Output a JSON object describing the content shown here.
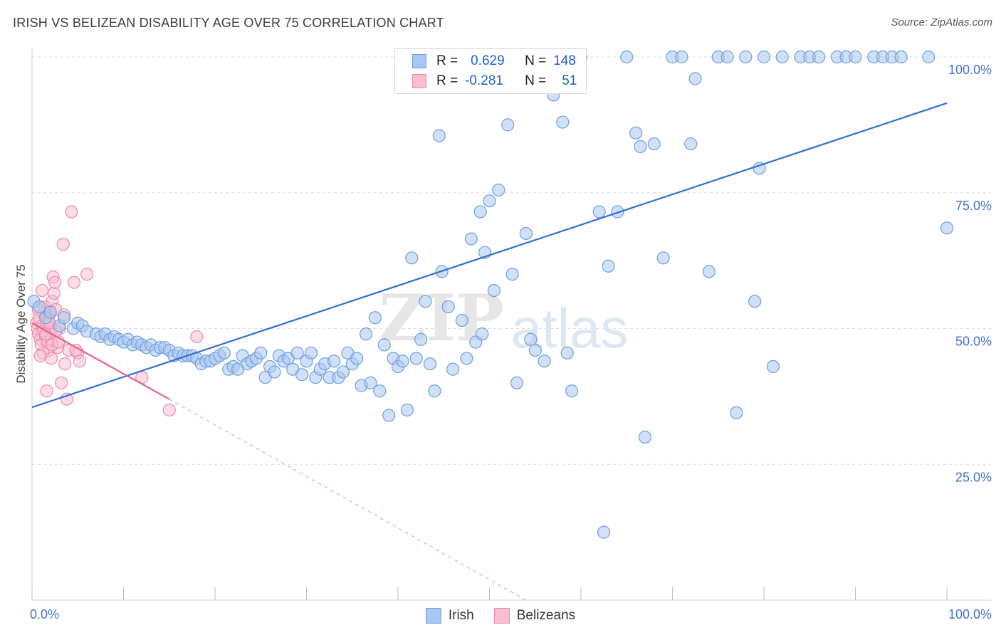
{
  "title": "IRISH VS BELIZEAN DISABILITY AGE OVER 75 CORRELATION CHART",
  "source": "Source: ZipAtlas.com",
  "watermark": {
    "zip": "ZIP",
    "atlas": "atlas"
  },
  "legend": {
    "irish": {
      "r_label": "R =",
      "r_value": "0.629",
      "n_label": "N =",
      "n_value": "148"
    },
    "belizeans": {
      "r_label": "R =",
      "r_value": "-0.281",
      "n_label": "N =",
      "n_value": "51"
    }
  },
  "colors": {
    "irish_fill": "#a9c6f0",
    "irish_stroke": "#6f9fe0",
    "irish_line": "#2f6fd1",
    "belize_fill": "#f7bfd0",
    "belize_stroke": "#ee8aab",
    "belize_line": "#e8608c",
    "grid": "#dcdcdc",
    "tick": "#4472c4"
  },
  "chart_data": {
    "type": "scatter",
    "title": "IRISH VS BELIZEAN DISABILITY AGE OVER 75 CORRELATION CHART",
    "xlabel": "",
    "ylabel": "Disability Age Over 75",
    "xlim": [
      0,
      100
    ],
    "ylim": [
      0,
      100
    ],
    "x_tick_labels": [
      "0.0%",
      "100.0%"
    ],
    "y_ticks": [
      25,
      50,
      75,
      100
    ],
    "y_tick_labels": [
      "25.0%",
      "50.0%",
      "75.0%",
      "100.0%"
    ],
    "grid": true,
    "legend_position": "bottom-center",
    "series": [
      {
        "name": "Irish",
        "r": 0.629,
        "n": 148,
        "trend": {
          "x0": 0,
          "y0": 35.5,
          "x1": 100,
          "y1": 91.5
        },
        "points": [
          [
            0.2,
            55
          ],
          [
            0.8,
            54
          ],
          [
            1.5,
            52
          ],
          [
            2,
            53
          ],
          [
            3,
            50.5
          ],
          [
            3.5,
            52
          ],
          [
            4.5,
            50
          ],
          [
            5,
            51
          ],
          [
            5.5,
            50.5
          ],
          [
            6,
            49.5
          ],
          [
            7,
            49
          ],
          [
            7.5,
            48.5
          ],
          [
            8,
            49
          ],
          [
            8.5,
            48
          ],
          [
            9,
            48.5
          ],
          [
            9.5,
            48
          ],
          [
            10,
            47.5
          ],
          [
            10.5,
            48
          ],
          [
            11,
            47
          ],
          [
            11.5,
            47.5
          ],
          [
            12,
            47
          ],
          [
            12.5,
            46.5
          ],
          [
            13,
            47
          ],
          [
            13.5,
            46
          ],
          [
            14,
            46.5
          ],
          [
            14.5,
            46.5
          ],
          [
            15,
            46
          ],
          [
            15.5,
            45
          ],
          [
            16,
            45.5
          ],
          [
            16.5,
            45
          ],
          [
            17,
            45
          ],
          [
            17.5,
            45
          ],
          [
            18,
            44.5
          ],
          [
            18.5,
            43.5
          ],
          [
            19,
            44
          ],
          [
            19.5,
            44
          ],
          [
            20,
            44.5
          ],
          [
            20.5,
            45
          ],
          [
            21,
            45.5
          ],
          [
            21.5,
            42.5
          ],
          [
            22,
            43
          ],
          [
            22.5,
            42.5
          ],
          [
            23,
            45
          ],
          [
            23.5,
            43.5
          ],
          [
            24,
            44
          ],
          [
            24.5,
            44.5
          ],
          [
            25,
            45.5
          ],
          [
            25.5,
            41
          ],
          [
            26,
            43
          ],
          [
            26.5,
            42
          ],
          [
            27,
            45
          ],
          [
            27.5,
            44
          ],
          [
            28,
            44.5
          ],
          [
            28.5,
            42.5
          ],
          [
            29,
            45.5
          ],
          [
            29.5,
            41.5
          ],
          [
            30,
            44
          ],
          [
            30.5,
            45.5
          ],
          [
            31,
            41
          ],
          [
            31.5,
            42.5
          ],
          [
            32,
            43.5
          ],
          [
            32.5,
            41
          ],
          [
            33,
            44
          ],
          [
            33.5,
            41
          ],
          [
            34,
            42
          ],
          [
            34.5,
            45.5
          ],
          [
            35,
            43.5
          ],
          [
            35.5,
            44.5
          ],
          [
            36,
            39.5
          ],
          [
            36.5,
            49
          ],
          [
            37,
            40
          ],
          [
            37.5,
            52
          ],
          [
            38,
            38.5
          ],
          [
            38.5,
            47
          ],
          [
            39,
            34
          ],
          [
            39.5,
            44.5
          ],
          [
            40,
            43
          ],
          [
            40.5,
            44
          ],
          [
            41,
            35
          ],
          [
            41.5,
            63
          ],
          [
            42,
            44.5
          ],
          [
            42.5,
            48
          ],
          [
            43,
            55
          ],
          [
            43.5,
            43.5
          ],
          [
            44,
            38.5
          ],
          [
            44.5,
            85.5
          ],
          [
            44.8,
            60.5
          ],
          [
            45.5,
            54
          ],
          [
            46,
            42.5
          ],
          [
            47,
            51.5
          ],
          [
            47.5,
            44.5
          ],
          [
            48,
            66.5
          ],
          [
            48.5,
            47.5
          ],
          [
            49,
            71.5
          ],
          [
            49.2,
            49
          ],
          [
            49.5,
            64
          ],
          [
            50,
            73.5
          ],
          [
            50.5,
            57
          ],
          [
            51,
            75.5
          ],
          [
            52,
            87.5
          ],
          [
            52.5,
            60
          ],
          [
            53,
            40
          ],
          [
            54,
            67.5
          ],
          [
            54.5,
            48
          ],
          [
            55,
            46
          ],
          [
            56,
            44
          ],
          [
            57,
            93
          ],
          [
            58,
            88
          ],
          [
            58.5,
            45.5
          ],
          [
            59,
            38.5
          ],
          [
            59.5,
            100
          ],
          [
            60,
            100
          ],
          [
            62,
            71.5
          ],
          [
            63,
            61.5
          ],
          [
            64,
            71.5
          ],
          [
            65,
            100
          ],
          [
            66,
            86
          ],
          [
            66.5,
            83.5
          ],
          [
            67,
            30
          ],
          [
            68,
            84
          ],
          [
            69,
            63
          ],
          [
            70,
            100
          ],
          [
            71,
            100
          ],
          [
            72,
            84
          ],
          [
            72.5,
            96
          ],
          [
            74,
            60.5
          ],
          [
            75,
            100
          ],
          [
            76,
            100
          ],
          [
            77,
            34.5
          ],
          [
            78,
            100
          ],
          [
            79,
            55
          ],
          [
            79.5,
            79.5
          ],
          [
            80,
            100
          ],
          [
            81,
            43
          ],
          [
            82,
            100
          ],
          [
            84,
            100
          ],
          [
            85,
            100
          ],
          [
            86,
            100
          ],
          [
            88,
            100
          ],
          [
            89,
            100
          ],
          [
            90,
            100
          ],
          [
            92,
            100
          ],
          [
            93,
            100
          ],
          [
            94,
            100
          ],
          [
            95,
            100
          ],
          [
            98,
            100
          ],
          [
            100,
            68.5
          ],
          [
            62.5,
            12.5
          ]
        ]
      },
      {
        "name": "Belizeans",
        "r": -0.281,
        "n": 51,
        "trend": {
          "x0": 0,
          "y0": 51,
          "x1": 15,
          "y1": 37
        },
        "trend_extension": {
          "x0": 15,
          "y0": 37,
          "x1": 54,
          "y1": 0
        },
        "points": [
          [
            0.5,
            51
          ],
          [
            0.6,
            50
          ],
          [
            0.7,
            49
          ],
          [
            0.8,
            52
          ],
          [
            0.9,
            48
          ],
          [
            1,
            47
          ],
          [
            1.1,
            50.5
          ],
          [
            1.2,
            49.5
          ],
          [
            1.3,
            53
          ],
          [
            1.4,
            54
          ],
          [
            1.5,
            48.5
          ],
          [
            1.6,
            51
          ],
          [
            1.7,
            47.5
          ],
          [
            1.8,
            46
          ],
          [
            1.9,
            52.5
          ],
          [
            2,
            50
          ],
          [
            2.1,
            48
          ],
          [
            2.2,
            55
          ],
          [
            2.3,
            59.5
          ],
          [
            2.4,
            56.5
          ],
          [
            2.5,
            58.5
          ],
          [
            2.6,
            53.5
          ],
          [
            2.8,
            46.5
          ],
          [
            3,
            50
          ],
          [
            3.2,
            40
          ],
          [
            3.4,
            65.5
          ],
          [
            3.6,
            43.5
          ],
          [
            3.8,
            37
          ],
          [
            4,
            46
          ],
          [
            4.3,
            71.5
          ],
          [
            4.6,
            58.5
          ],
          [
            5,
            45.5
          ],
          [
            5.2,
            44
          ],
          [
            6,
            60
          ],
          [
            1.2,
            45.5
          ],
          [
            1.5,
            49
          ],
          [
            1.8,
            51.5
          ],
          [
            2.2,
            47
          ],
          [
            2.6,
            49.5
          ],
          [
            0.9,
            45
          ],
          [
            1.6,
            38.5
          ],
          [
            2.9,
            47.5
          ],
          [
            3.5,
            52.5
          ],
          [
            4.8,
            46
          ],
          [
            0.7,
            53.5
          ],
          [
            12,
            41
          ],
          [
            15,
            35
          ],
          [
            18,
            48.5
          ],
          [
            1.1,
            57
          ],
          [
            1.9,
            51
          ],
          [
            2.1,
            44.5
          ]
        ]
      }
    ]
  },
  "bottom_legend": {
    "irish": "Irish",
    "belizeans": "Belizeans"
  }
}
